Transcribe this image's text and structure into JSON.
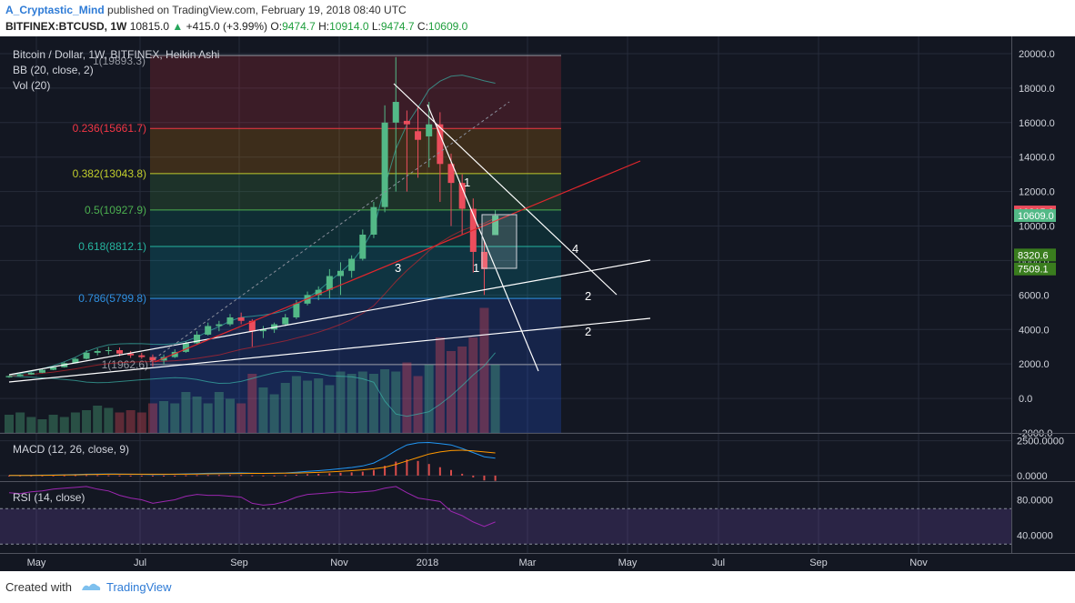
{
  "header": {
    "author": "A_Cryptastic_Mind",
    "published_text": "published on TradingView.com, February 19, 2018 08:40 UTC",
    "symbol": "BITFINEX:BTCUSD, 1W",
    "last": "10815.0",
    "change": "+415.0 (+3.99%)",
    "o_label": "O:",
    "o_value": "9474.7",
    "h_label": "H:",
    "h_value": "10914.0",
    "l_label": "L:",
    "l_value": "9474.7",
    "c_label": "C:",
    "c_value": "10609.0"
  },
  "legend": {
    "title": "Bitcoin / Dollar, 1W, BITFINEX, Heikin Ashi",
    "bb": "BB (20, close, 2)",
    "vol": "Vol (20)",
    "macd": "MACD (12, 26, close, 9)",
    "rsi": "RSI (14, close)"
  },
  "footer": {
    "created_with": "Created with",
    "brand": "TradingView"
  },
  "colors": {
    "background": "#131722",
    "bull": "#53b987",
    "bear": "#eb4d5c",
    "grid": "#262b3a",
    "axis_text": "#d1d4dc",
    "trend_white": "#ffffff",
    "trend_red": "#e0262c"
  },
  "chart_data": {
    "type": "candlestick",
    "style": "Heikin Ashi",
    "grid": true,
    "x_ticks": [
      "May",
      "Jul",
      "Sep",
      "Nov",
      "2018",
      "Mar",
      "May",
      "Jul",
      "Sep",
      "Nov"
    ],
    "price_axis": {
      "ticks": [
        "20000.0",
        "18000.0",
        "16000.0",
        "14000.0",
        "12000.0",
        "10000.0",
        "8000.0",
        "6000.0",
        "4000.0",
        "2000.0",
        "0.0",
        "-2000.0"
      ],
      "range": [
        -2000,
        21000
      ],
      "badges": [
        {
          "value": 10815.0,
          "label": "10815.0",
          "color": "#eb4d5c"
        },
        {
          "value": 10609.0,
          "label": "10609.0",
          "color": "#53b987"
        },
        {
          "value": 8320.6,
          "label": "8320.6",
          "color": "#3a7d1e"
        },
        {
          "value": 7509.1,
          "label": "7509.1",
          "color": "#3a7d1e"
        }
      ]
    },
    "fib_levels": [
      {
        "ratio": "1",
        "value": 19893.3,
        "label": "1(19893.3)",
        "color": "#9598a1"
      },
      {
        "ratio": "0.236",
        "value": 15661.7,
        "label": "0.236(15661.7)",
        "color": "#f23645"
      },
      {
        "ratio": "0.382",
        "value": 13043.8,
        "label": "0.382(13043.8)",
        "color": "#c0cc2c"
      },
      {
        "ratio": "0.5",
        "value": 10927.9,
        "label": "0.5(10927.9)",
        "color": "#4caf50"
      },
      {
        "ratio": "0.618",
        "value": 8812.1,
        "label": "0.618(8812.1)",
        "color": "#26b5a0"
      },
      {
        "ratio": "0.786",
        "value": 5799.8,
        "label": "0.786(5799.8)",
        "color": "#2f8fe0"
      },
      {
        "ratio": "1",
        "value": 1962.6,
        "label": "1(1962.6)",
        "color": "#9598a1"
      }
    ],
    "candles": [
      {
        "o": 1230,
        "h": 1330,
        "l": 1200,
        "c": 1300
      },
      {
        "o": 1300,
        "h": 1420,
        "l": 1280,
        "c": 1390
      },
      {
        "o": 1390,
        "h": 1520,
        "l": 1370,
        "c": 1490
      },
      {
        "o": 1490,
        "h": 1700,
        "l": 1470,
        "c": 1660
      },
      {
        "o": 1660,
        "h": 1850,
        "l": 1640,
        "c": 1810
      },
      {
        "o": 1810,
        "h": 2100,
        "l": 1790,
        "c": 2050
      },
      {
        "o": 2050,
        "h": 2350,
        "l": 2020,
        "c": 2300
      },
      {
        "o": 2300,
        "h": 2800,
        "l": 2250,
        "c": 2650
      },
      {
        "o": 2650,
        "h": 2900,
        "l": 2500,
        "c": 2750
      },
      {
        "o": 2750,
        "h": 3000,
        "l": 2550,
        "c": 2800
      },
      {
        "o": 2800,
        "h": 2950,
        "l": 2450,
        "c": 2600
      },
      {
        "o": 2600,
        "h": 2750,
        "l": 2350,
        "c": 2500
      },
      {
        "o": 2500,
        "h": 2650,
        "l": 2300,
        "c": 2400
      },
      {
        "o": 2400,
        "h": 2550,
        "l": 1850,
        "c": 2200
      },
      {
        "o": 2200,
        "h": 2550,
        "l": 1950,
        "c": 2400
      },
      {
        "o": 2400,
        "h": 2850,
        "l": 2350,
        "c": 2700
      },
      {
        "o": 2700,
        "h": 3300,
        "l": 2650,
        "c": 3200
      },
      {
        "o": 3200,
        "h": 3900,
        "l": 3150,
        "c": 3700
      },
      {
        "o": 3700,
        "h": 4400,
        "l": 3650,
        "c": 4200
      },
      {
        "o": 4200,
        "h": 4500,
        "l": 3900,
        "c": 4300
      },
      {
        "o": 4300,
        "h": 4900,
        "l": 4200,
        "c": 4700
      },
      {
        "o": 4700,
        "h": 4980,
        "l": 4300,
        "c": 4500
      },
      {
        "o": 4500,
        "h": 4600,
        "l": 3000,
        "c": 3900
      },
      {
        "o": 3900,
        "h": 4200,
        "l": 3500,
        "c": 4000
      },
      {
        "o": 4000,
        "h": 4400,
        "l": 3800,
        "c": 4300
      },
      {
        "o": 4300,
        "h": 4900,
        "l": 4200,
        "c": 4700
      },
      {
        "o": 4700,
        "h": 5700,
        "l": 4600,
        "c": 5500
      },
      {
        "o": 5500,
        "h": 6200,
        "l": 5400,
        "c": 6000
      },
      {
        "o": 6000,
        "h": 6500,
        "l": 5700,
        "c": 6300
      },
      {
        "o": 6300,
        "h": 7500,
        "l": 5800,
        "c": 7100
      },
      {
        "o": 7100,
        "h": 7900,
        "l": 6000,
        "c": 7400
      },
      {
        "o": 7400,
        "h": 8300,
        "l": 7000,
        "c": 8100
      },
      {
        "o": 8100,
        "h": 9800,
        "l": 8000,
        "c": 9500
      },
      {
        "o": 9500,
        "h": 11400,
        "l": 9300,
        "c": 11100
      },
      {
        "o": 11100,
        "h": 17000,
        "l": 10800,
        "c": 16000
      },
      {
        "o": 16000,
        "h": 19800,
        "l": 12000,
        "c": 17200
      },
      {
        "o": 16100,
        "h": 16700,
        "l": 12000,
        "c": 15900
      },
      {
        "o": 15500,
        "h": 16900,
        "l": 12800,
        "c": 15000
      },
      {
        "o": 15200,
        "h": 17200,
        "l": 13400,
        "c": 15900
      },
      {
        "o": 15900,
        "h": 16600,
        "l": 11400,
        "c": 13600
      },
      {
        "o": 13600,
        "h": 14200,
        "l": 10000,
        "c": 12500
      },
      {
        "o": 12500,
        "h": 13000,
        "l": 9500,
        "c": 11000
      },
      {
        "o": 11000,
        "h": 11600,
        "l": 7300,
        "c": 8500
      },
      {
        "o": 8500,
        "h": 9200,
        "l": 6000,
        "c": 7500
      },
      {
        "o": 9474.7,
        "h": 10914.0,
        "l": 9474.7,
        "c": 10609.0
      }
    ],
    "volume": {
      "ticks": [],
      "bars": [
        0.08,
        0.09,
        0.07,
        0.06,
        0.08,
        0.07,
        0.09,
        0.1,
        0.12,
        0.11,
        0.09,
        0.1,
        0.09,
        0.13,
        0.14,
        0.13,
        0.18,
        0.16,
        0.13,
        0.18,
        0.15,
        0.13,
        0.26,
        0.2,
        0.17,
        0.22,
        0.25,
        0.23,
        0.24,
        0.21,
        0.27,
        0.26,
        0.27,
        0.26,
        0.28,
        0.27,
        0.31,
        0.25,
        0.3,
        0.42,
        0.36,
        0.38,
        0.42,
        0.55,
        0.3
      ],
      "scale_max": 0.6
    },
    "macd": {
      "ticks": [
        "2500.0000",
        "0.0000"
      ],
      "range": [
        -400,
        3000
      ],
      "macd_line": [
        10,
        15,
        25,
        30,
        40,
        55,
        80,
        100,
        110,
        115,
        110,
        100,
        90,
        80,
        85,
        95,
        120,
        140,
        160,
        170,
        180,
        190,
        170,
        165,
        170,
        190,
        240,
        300,
        350,
        420,
        500,
        580,
        690,
        900,
        1300,
        1800,
        2200,
        2350,
        2380,
        2300,
        2200,
        1950,
        1650,
        1350,
        1250
      ],
      "signal_line": [
        5,
        10,
        15,
        20,
        28,
        38,
        52,
        70,
        85,
        95,
        100,
        100,
        98,
        95,
        94,
        95,
        100,
        110,
        120,
        130,
        140,
        150,
        155,
        158,
        162,
        168,
        180,
        200,
        225,
        260,
        300,
        350,
        410,
        490,
        600,
        800,
        1050,
        1300,
        1550,
        1700,
        1800,
        1820,
        1780,
        1700,
        1630
      ],
      "histogram": [
        5,
        5,
        10,
        10,
        12,
        17,
        28,
        30,
        25,
        20,
        10,
        0,
        -8,
        -15,
        -9,
        0,
        20,
        30,
        40,
        40,
        40,
        40,
        15,
        7,
        8,
        22,
        60,
        100,
        125,
        160,
        200,
        230,
        280,
        410,
        700,
        1000,
        1150,
        1050,
        830,
        600,
        400,
        130,
        -130,
        -350,
        -380
      ],
      "hist_colors": [
        "#26a69a",
        "#ef5350"
      ]
    },
    "rsi": {
      "ticks": [
        "80.0000",
        "40.0000"
      ],
      "range": [
        20,
        100
      ],
      "upper_band": 70,
      "lower_band": 30,
      "values": [
        88,
        87,
        89,
        90,
        92,
        93,
        94,
        95,
        92,
        90,
        85,
        82,
        80,
        76,
        78,
        80,
        84,
        86,
        85,
        85,
        84,
        83,
        76,
        74,
        75,
        78,
        83,
        86,
        87,
        88,
        89,
        88,
        89,
        90,
        93,
        95,
        88,
        82,
        80,
        78,
        67,
        62,
        55,
        50,
        55
      ]
    },
    "drawings": {
      "numbers": [
        "1",
        "1",
        "2",
        "2",
        "3",
        "4"
      ]
    }
  }
}
